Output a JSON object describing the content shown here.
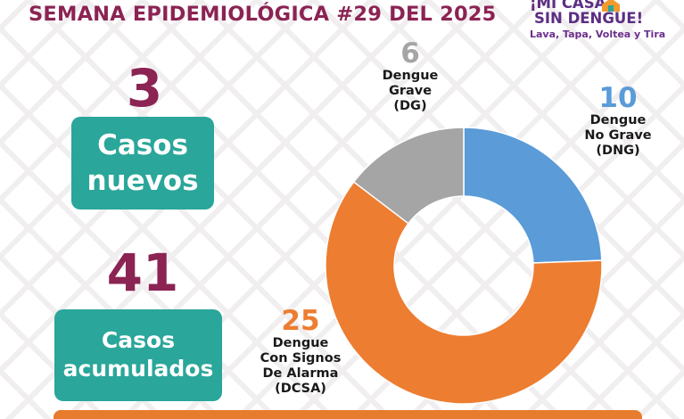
{
  "header": {
    "title": "SEMANA EPIDEMIOLÓGICA #29 DEL 2025"
  },
  "logo": {
    "line1": "¡MI CASA",
    "line2": "SIN DENGUE!",
    "slogan": "Lava, Tapa, Voltea y Tira"
  },
  "stats": {
    "new_cases_value": "3",
    "new_cases_label_1": "Casos",
    "new_cases_label_2": "nuevos",
    "cumulative_value": "41",
    "cumulative_label_1": "Casos",
    "cumulative_label_2": "acumulados"
  },
  "colors": {
    "title": "#8b2353",
    "teal": "#2aa69a",
    "dng": "#5a9bd8",
    "dcsa": "#ed7d31",
    "dg": "#a5a5a5"
  },
  "chart_data": {
    "type": "pie",
    "variant": "donut",
    "total": 41,
    "series": [
      {
        "key": "dng",
        "value": 10,
        "value_label": "10",
        "line1": "Dengue",
        "line2": "No Grave",
        "line3": "(DNG)"
      },
      {
        "key": "dcsa",
        "value": 25,
        "value_label": "25",
        "line1": "Dengue",
        "line2": "Con Signos",
        "line3": "De Alarma",
        "line4": "(DCSA)"
      },
      {
        "key": "dg",
        "value": 6,
        "value_label": "6",
        "line1": "Dengue",
        "line2": "Grave",
        "line3": "(DG)"
      }
    ],
    "start_angle_deg": 0,
    "direction": "clockwise"
  }
}
